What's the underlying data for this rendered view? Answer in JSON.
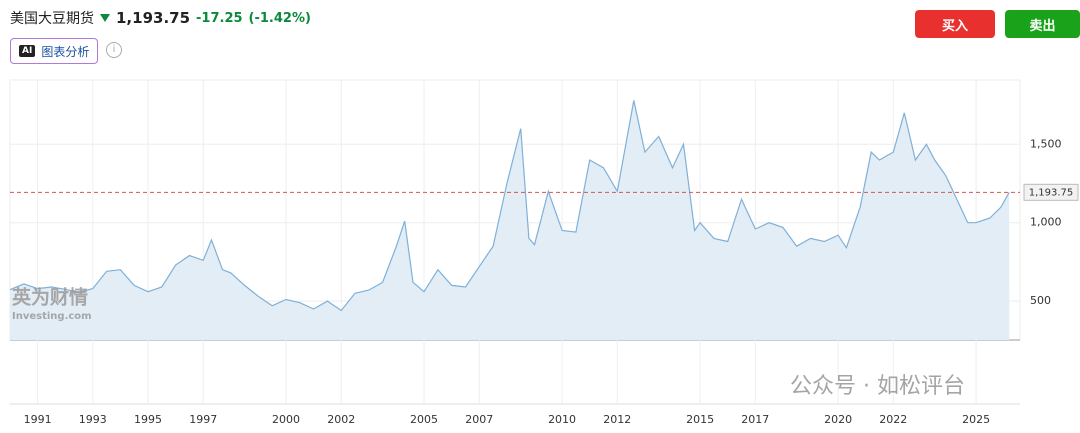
{
  "header": {
    "title": "美国大豆期货",
    "change": "-17.25",
    "change_pct": "(-1.42%)",
    "ai_tag": "AI",
    "ai_button": "图表分析",
    "info": "i"
  },
  "buttons": {
    "buy": "买入",
    "sell": "卖出"
  },
  "watermarks": {
    "brand": "英为财情",
    "brand_sub": "Investing.com",
    "wechat": "公众号 · 如松评台"
  },
  "chart_data": {
    "type": "area",
    "color": "#7fb0d8",
    "fill": "#e3edf6",
    "grid": true,
    "x": [
      1990.0,
      1990.5,
      1991.0,
      1991.5,
      1992.0,
      1992.5,
      1993.0,
      1993.5,
      1994.0,
      1994.5,
      1995.0,
      1995.5,
      1996.0,
      1996.5,
      1997.0,
      1997.3,
      1997.7,
      1998.0,
      1998.5,
      1999.0,
      1999.5,
      2000.0,
      2000.5,
      2001.0,
      2001.5,
      2002.0,
      2002.5,
      2003.0,
      2003.5,
      2004.0,
      2004.3,
      2004.6,
      2005.0,
      2005.5,
      2006.0,
      2006.5,
      2007.0,
      2007.5,
      2008.0,
      2008.5,
      2008.8,
      2009.0,
      2009.5,
      2010.0,
      2010.5,
      2011.0,
      2011.5,
      2012.0,
      2012.6,
      2013.0,
      2013.5,
      2014.0,
      2014.4,
      2014.8,
      2015.0,
      2015.5,
      2016.0,
      2016.5,
      2017.0,
      2017.5,
      2018.0,
      2018.5,
      2019.0,
      2019.5,
      2020.0,
      2020.3,
      2020.8,
      2021.2,
      2021.5,
      2022.0,
      2022.4,
      2022.8,
      2023.2,
      2023.5,
      2023.9,
      2024.3,
      2024.7,
      2025.0,
      2025.5,
      2025.9,
      2026.2
    ],
    "values": [
      573,
      610,
      580,
      590,
      575,
      555,
      580,
      690,
      700,
      600,
      560,
      590,
      730,
      790,
      760,
      890,
      700,
      680,
      600,
      530,
      470,
      510,
      490,
      450,
      500,
      440,
      550,
      570,
      620,
      850,
      1010,
      620,
      560,
      700,
      600,
      590,
      720,
      850,
      1250,
      1600,
      900,
      860,
      1200,
      950,
      940,
      1400,
      1350,
      1200,
      1780,
      1450,
      1550,
      1350,
      1500,
      950,
      1000,
      900,
      880,
      1150,
      960,
      1000,
      970,
      850,
      900,
      880,
      920,
      840,
      1100,
      1450,
      1400,
      1450,
      1700,
      1400,
      1500,
      1400,
      1300,
      1150,
      1000,
      1000,
      1030,
      1100,
      1193.75
    ],
    "xlim": [
      1990,
      2026.3
    ],
    "xticks": [
      1991,
      1993,
      1995,
      1997,
      2000,
      2002,
      2005,
      2007,
      2010,
      2012,
      2015,
      2017,
      2020,
      2022,
      2025
    ],
    "ylim": [
      252,
      1910
    ],
    "yticks": [
      500,
      {
        "value": 1000,
        "label": "1,000"
      },
      {
        "value": 1500,
        "label": "1,500"
      }
    ],
    "last_price": {
      "value": 1193.75,
      "label": "1,193.75"
    },
    "last_price_color": "#d9534f"
  }
}
